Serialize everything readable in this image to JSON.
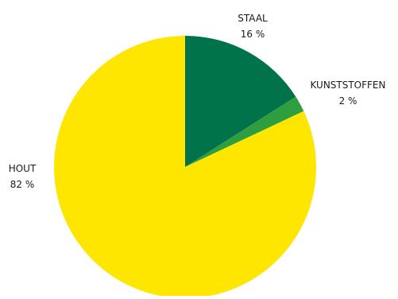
{
  "chart_data": {
    "type": "pie",
    "title": "",
    "slices": [
      {
        "label": "STAAL",
        "value": 16,
        "value_label": "16 %",
        "color": "#00734A"
      },
      {
        "label": "KUNSTSTOFFEN",
        "value": 2,
        "value_label": "2 %",
        "color": "#2E9E3E"
      },
      {
        "label": "HOUT",
        "value": 82,
        "value_label": "82 %",
        "color": "#FFE600"
      }
    ],
    "start_angle": "12 o'clock",
    "direction": "clockwise",
    "labels": "outside"
  }
}
